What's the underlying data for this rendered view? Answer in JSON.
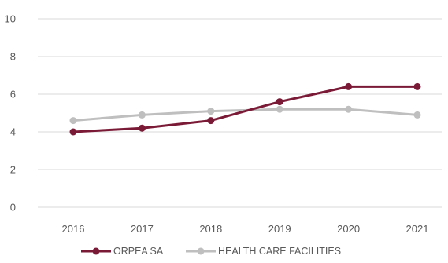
{
  "chart_data": {
    "type": "line",
    "title": "",
    "xlabel": "",
    "ylabel": "",
    "categories": [
      "2016",
      "2017",
      "2018",
      "2019",
      "2020",
      "2021"
    ],
    "ylim": [
      0,
      10
    ],
    "yticks": [
      0,
      2,
      4,
      6,
      8,
      10
    ],
    "ytick_labels": [
      "0",
      "2",
      "4",
      "6",
      "8",
      "10"
    ],
    "grid": true,
    "legend_position": "bottom",
    "series": [
      {
        "name": "ORPEA SA",
        "color": "#7b1a37",
        "values": [
          4.0,
          4.2,
          4.6,
          5.6,
          6.4,
          6.4
        ]
      },
      {
        "name": "HEALTH CARE FACILITIES",
        "color": "#bfbfbf",
        "values": [
          4.6,
          4.9,
          5.1,
          5.2,
          5.2,
          4.9
        ]
      }
    ]
  }
}
